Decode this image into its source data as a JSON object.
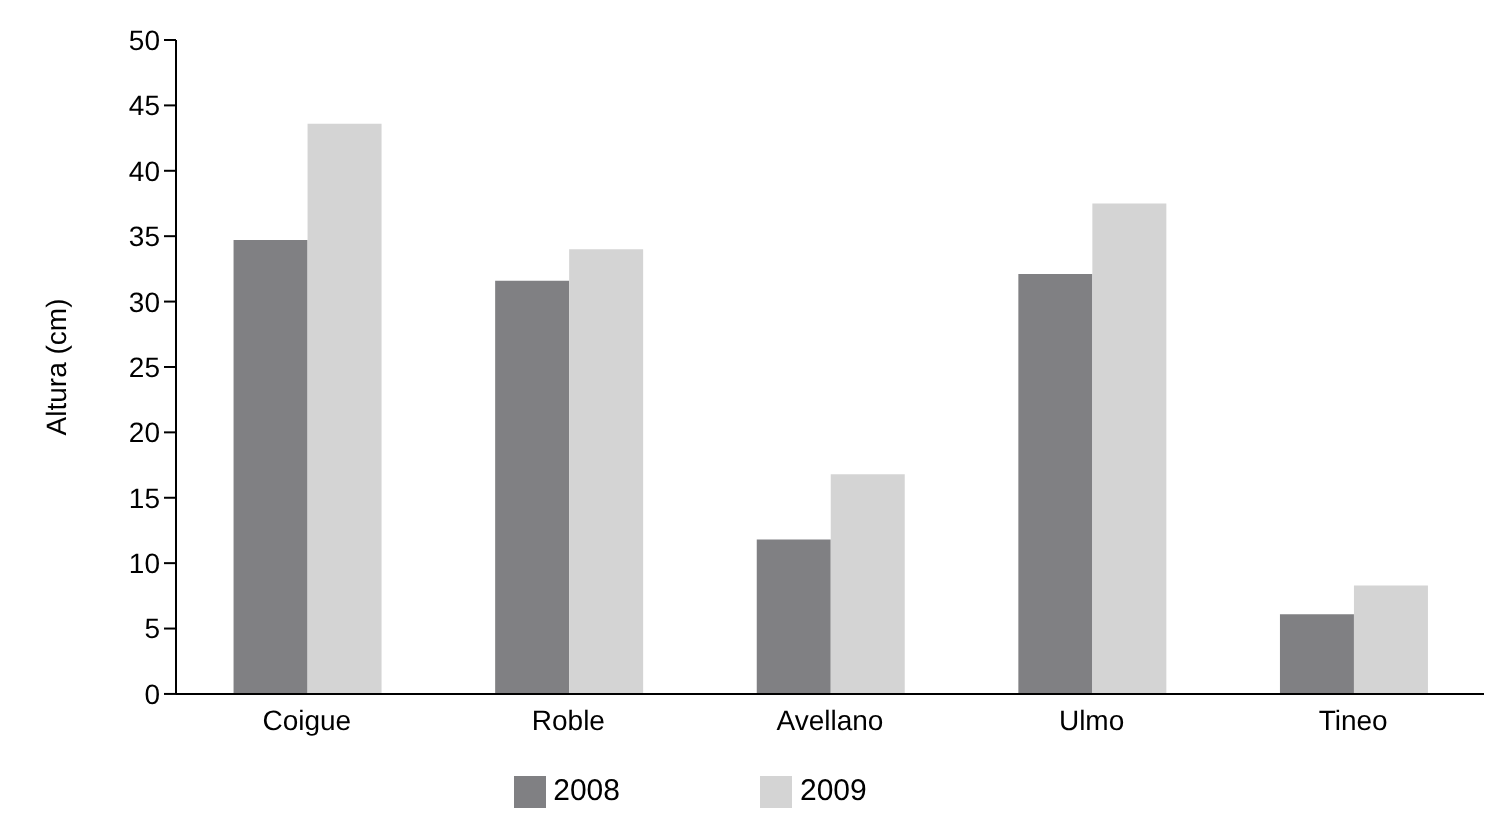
{
  "chart_data": {
    "type": "bar",
    "ylabel": "Altura (cm)",
    "categories": [
      "Coigue",
      "Roble",
      "Avellano",
      "Ulmo",
      "Tineo"
    ],
    "series": [
      {
        "name": "2008",
        "color": "#808083",
        "values": [
          34.7,
          31.6,
          11.8,
          32.1,
          6.1
        ]
      },
      {
        "name": "2009",
        "color": "#d4d4d4",
        "values": [
          43.6,
          34.0,
          16.8,
          37.5,
          8.3
        ]
      }
    ],
    "ylim": [
      0,
      50
    ],
    "yticks": [
      0,
      5,
      10,
      15,
      20,
      25,
      30,
      35,
      40,
      45,
      50
    ],
    "grid": false,
    "legend": "bottom"
  }
}
